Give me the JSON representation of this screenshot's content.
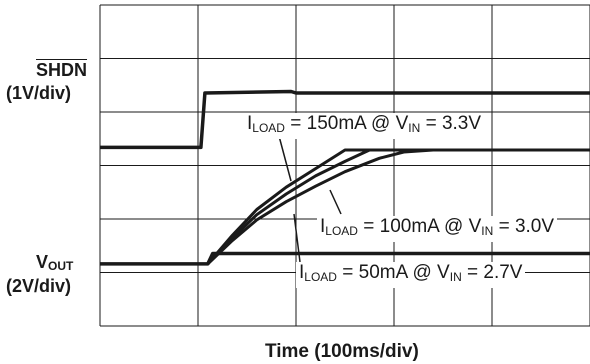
{
  "chart_data": {
    "type": "line",
    "xlabel": "Time (100ms/div)",
    "traces": [
      {
        "name_parts": [
          "SHDN",
          "(1V/div)"
        ],
        "label_overline": true,
        "points": [
          [
            0,
            2.25
          ],
          [
            1.03,
            2.25
          ],
          [
            1.07,
            3.3
          ],
          [
            1.95,
            3.33
          ],
          [
            2.0,
            3.3
          ],
          [
            5,
            3.3
          ]
        ]
      },
      {
        "name_parts": [
          "V",
          "OUT",
          "(2V/div)"
        ],
        "points": [
          [
            0,
            0
          ],
          [
            1.1,
            0
          ],
          [
            1.15,
            0.2
          ],
          [
            5,
            0.2
          ]
        ]
      }
    ],
    "vout_curves": [
      {
        "label": [
          "I",
          "LOAD",
          " = 150mA @ V",
          "IN",
          " = 3.3V"
        ],
        "points": [
          [
            1.1,
            0
          ],
          [
            1.35,
            0.55
          ],
          [
            1.6,
            1.05
          ],
          [
            1.9,
            1.48
          ],
          [
            2.2,
            1.84
          ],
          [
            2.45,
            2.14
          ],
          [
            2.5,
            2.2
          ],
          [
            5,
            2.2
          ]
        ]
      },
      {
        "label": [
          "I",
          "LOAD",
          " = 100mA @ V",
          "IN",
          " = 3.0V"
        ],
        "points": [
          [
            1.1,
            0
          ],
          [
            1.35,
            0.5
          ],
          [
            1.6,
            0.95
          ],
          [
            1.9,
            1.35
          ],
          [
            2.2,
            1.7
          ],
          [
            2.5,
            1.98
          ],
          [
            2.75,
            2.2
          ],
          [
            5,
            2.2
          ]
        ]
      },
      {
        "label": [
          "I",
          "LOAD",
          " = 50mA @ V",
          "IN",
          " = 2.7V"
        ],
        "points": [
          [
            1.1,
            0
          ],
          [
            1.35,
            0.45
          ],
          [
            1.6,
            0.85
          ],
          [
            1.9,
            1.2
          ],
          [
            2.2,
            1.5
          ],
          [
            2.5,
            1.78
          ],
          [
            2.85,
            2.04
          ],
          [
            3.1,
            2.16
          ],
          [
            3.4,
            2.2
          ],
          [
            5,
            2.2
          ]
        ]
      }
    ],
    "xlim": [
      0,
      5
    ],
    "ylim": [
      -1.2,
      5.0
    ],
    "grid": true,
    "x_divisions": 5,
    "y_divisions": 6
  }
}
